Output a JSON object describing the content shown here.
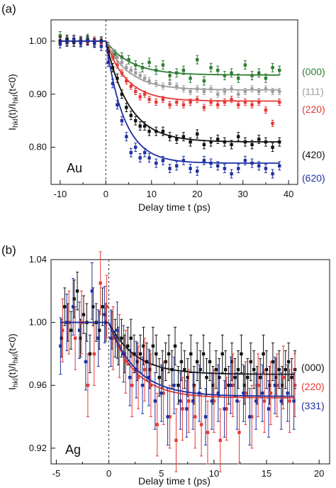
{
  "chart_data": [
    {
      "type": "scatter",
      "panel_label": "(a)",
      "annotation": "Au",
      "xlabel": "Delay time t (ps)",
      "ylabel": "I_hkl(t)/I_hkl(t<0)",
      "xlim": [
        -12,
        42
      ],
      "ylim": [
        0.73,
        1.04
      ],
      "xticks": [
        -10,
        0,
        10,
        20,
        30,
        40
      ],
      "yticks": [
        0.8,
        0.9,
        1.0
      ],
      "ytick_labels": [
        "0.80",
        "0.90",
        "1.00"
      ],
      "grid": false,
      "dashed_vline_x": 0,
      "series": [
        {
          "name": "(000)",
          "color": "#2e7d32",
          "amp": 0.064,
          "tau": 5.5,
          "x": [
            -10,
            -8.5,
            -7,
            -5.5,
            -4,
            -2.5,
            -1,
            0.5,
            2,
            3.5,
            5,
            6.5,
            8,
            9.5,
            11,
            12.5,
            14,
            15.5,
            17,
            18.5,
            20,
            21.5,
            23,
            24.5,
            26,
            27.5,
            29,
            30.5,
            32,
            33.5,
            35,
            36.5,
            38
          ],
          "y": [
            1.01,
            1.0,
            1.003,
            0.998,
            1.005,
            1.0,
            0.997,
            0.99,
            0.975,
            0.97,
            0.965,
            0.955,
            0.95,
            0.96,
            0.945,
            0.955,
            0.935,
            0.94,
            0.945,
            0.93,
            0.965,
            0.925,
            0.95,
            0.945,
            0.935,
            0.94,
            0.93,
            0.955,
            0.935,
            0.94,
            0.93,
            0.95,
            0.945
          ],
          "err": 0.008
        },
        {
          "name": "(111)",
          "color": "#9e9e9e",
          "amp": 0.092,
          "tau": 5.0,
          "x": [
            -10,
            -8.5,
            -7,
            -5.5,
            -4,
            -2.5,
            -1,
            0.5,
            1.5,
            2.5,
            3.5,
            4.5,
            5.5,
            6.5,
            7.5,
            8.5,
            9.5,
            11,
            12.5,
            14,
            15.5,
            17,
            18.5,
            20,
            21.5,
            23,
            24.5,
            26,
            27.5,
            29,
            30.5,
            32,
            33.5,
            35,
            36.5,
            38
          ],
          "y": [
            1.0,
            1.005,
            0.998,
            1.003,
            1.0,
            0.997,
            1.002,
            0.99,
            0.98,
            0.97,
            0.96,
            0.95,
            0.945,
            0.94,
            0.935,
            0.93,
            0.925,
            0.92,
            0.915,
            0.92,
            0.915,
            0.91,
            0.905,
            0.91,
            0.905,
            0.91,
            0.9,
            0.905,
            0.91,
            0.9,
            0.905,
            0.91,
            0.905,
            0.91,
            0.905,
            0.905
          ],
          "err": 0.006
        },
        {
          "name": "(220)",
          "color": "#e53935",
          "amp": 0.113,
          "tau": 4.5,
          "x": [
            -10,
            -8.5,
            -7,
            -5.5,
            -4,
            -2.5,
            -1,
            0.5,
            1.5,
            2.5,
            3.5,
            4.5,
            5.5,
            6.5,
            7.5,
            8.5,
            9.5,
            11,
            12.5,
            14,
            15.5,
            17,
            18.5,
            20,
            21.5,
            23,
            24.5,
            26,
            27.5,
            29,
            30.5,
            32,
            33.5,
            35,
            36.5,
            38
          ],
          "y": [
            1.0,
            0.997,
            1.003,
            1.0,
            0.998,
            1.002,
            0.997,
            0.985,
            0.97,
            0.955,
            0.94,
            0.925,
            0.915,
            0.905,
            0.895,
            0.9,
            0.89,
            0.885,
            0.89,
            0.88,
            0.885,
            0.88,
            0.885,
            0.89,
            0.875,
            0.885,
            0.88,
            0.885,
            0.89,
            0.88,
            0.885,
            0.88,
            0.885,
            0.87,
            0.845,
            0.885
          ],
          "err": 0.006
        },
        {
          "name": "(420)",
          "color": "#111111",
          "amp": 0.19,
          "tau": 5.0,
          "x": [
            -10,
            -8.5,
            -7,
            -5.5,
            -4,
            -2.5,
            -1,
            0.5,
            1.5,
            2.5,
            3.5,
            4.5,
            5.5,
            6.5,
            7.5,
            8.5,
            9.5,
            11,
            12.5,
            14,
            15.5,
            17,
            18.5,
            20,
            21.5,
            23,
            24.5,
            26,
            27.5,
            29,
            30.5,
            32,
            33.5,
            35,
            36.5,
            38
          ],
          "y": [
            1.0,
            1.003,
            0.998,
            1.0,
            1.002,
            0.997,
            1.0,
            0.98,
            0.95,
            0.93,
            0.9,
            0.875,
            0.86,
            0.85,
            0.84,
            0.84,
            0.83,
            0.83,
            0.83,
            0.82,
            0.815,
            0.82,
            0.81,
            0.825,
            0.805,
            0.81,
            0.815,
            0.81,
            0.805,
            0.82,
            0.81,
            0.805,
            0.815,
            0.81,
            0.8,
            0.81
          ],
          "err": 0.008
        },
        {
          "name": "(620)",
          "color": "#1e30a0",
          "amp": 0.23,
          "tau": 4.0,
          "x": [
            -10,
            -8.5,
            -7,
            -5.5,
            -4,
            -2.5,
            -1,
            0.5,
            1.5,
            2.5,
            3.5,
            4.5,
            5.5,
            6.5,
            7.5,
            8.5,
            9.5,
            11,
            12.5,
            14,
            15.5,
            17,
            18.5,
            20,
            21.5,
            23,
            24.5,
            26,
            27.5,
            29,
            30.5,
            32,
            33.5,
            35,
            36.5,
            38
          ],
          "y": [
            0.995,
            0.998,
            1.003,
            0.997,
            1.0,
            0.996,
            0.99,
            0.96,
            0.92,
            0.88,
            0.85,
            0.82,
            0.79,
            0.8,
            0.78,
            0.79,
            0.78,
            0.77,
            0.775,
            0.76,
            0.765,
            0.775,
            0.76,
            0.755,
            0.775,
            0.77,
            0.765,
            0.76,
            0.75,
            0.76,
            0.775,
            0.77,
            0.765,
            0.76,
            0.75,
            0.765
          ],
          "err": 0.008
        }
      ]
    },
    {
      "type": "scatter",
      "panel_label": "(b)",
      "annotation": "Ag",
      "xlabel": "Delay time t (ps)",
      "ylabel": "I_hkl(t)/I_hkl(t<0)",
      "xlim": [
        -5.5,
        21
      ],
      "ylim": [
        0.91,
        1.04
      ],
      "xticks": [
        -5,
        0,
        5,
        10,
        15,
        20
      ],
      "yticks": [
        0.92,
        0.96,
        1.0,
        1.04
      ],
      "ytick_labels": [
        "0.92",
        "0.96",
        "1.00",
        "1.04"
      ],
      "grid": false,
      "dashed_vline_x": 0,
      "series": [
        {
          "name": "(000)",
          "color": "#111111",
          "amp": 0.033,
          "tau": 2.5,
          "x": [
            -4.5,
            -4.2,
            -3.9,
            -3.6,
            -3.3,
            -3,
            -2.7,
            -2.4,
            -2.1,
            -1.8,
            -1.5,
            -1.2,
            -0.9,
            -0.6,
            -0.3,
            0.3,
            0.6,
            0.9,
            1.2,
            1.5,
            1.8,
            2.1,
            2.4,
            2.7,
            3,
            3.3,
            3.6,
            3.9,
            4.2,
            4.5,
            4.8,
            5.1,
            5.4,
            5.7,
            6,
            6.3,
            6.6,
            6.9,
            7.2,
            7.5,
            7.8,
            8.1,
            8.4,
            8.7,
            9,
            9.3,
            9.6,
            9.9,
            10.2,
            10.5,
            10.8,
            11.1,
            11.4,
            11.7,
            12,
            12.3,
            12.6,
            12.9,
            13.2,
            13.5,
            13.8,
            14.1,
            14.4,
            14.7,
            15,
            15.3,
            15.6,
            15.9,
            16.2,
            16.5,
            16.8,
            17.1,
            17.4,
            17.7
          ],
          "y": [
            0.99,
            1.01,
            1.0,
            0.995,
            1.015,
            1.02,
            0.99,
            1.005,
            1.0,
            0.98,
            1.01,
            1.0,
            0.995,
            1.01,
            1.0,
            0.995,
            0.99,
            0.985,
            0.99,
            0.98,
            0.985,
            0.99,
            0.98,
            0.975,
            0.98,
            0.985,
            0.975,
            0.97,
            0.985,
            0.98,
            0.965,
            0.97,
            0.975,
            0.98,
            0.97,
            0.985,
            0.96,
            0.975,
            0.97,
            0.965,
            0.98,
            0.96,
            0.975,
            0.97,
            0.98,
            0.965,
            0.975,
            0.96,
            0.97,
            0.965,
            0.98,
            0.97,
            0.96,
            0.975,
            0.965,
            0.97,
            0.98,
            0.96,
            0.965,
            0.975,
            0.97,
            0.96,
            0.965,
            0.98,
            0.97,
            0.96,
            0.975,
            0.965,
            0.97,
            0.96,
            0.97,
            0.975,
            0.965,
            0.97
          ],
          "err": 0.012
        },
        {
          "name": "(220)",
          "color": "#e53935",
          "amp": 0.048,
          "tau": 2.4,
          "x": [
            -4.4,
            -3.8,
            -3.2,
            -2.6,
            -2.0,
            -1.4,
            -0.8,
            -0.2,
            0.4,
            1.0,
            1.6,
            2.2,
            2.8,
            3.4,
            4.0,
            4.6,
            5.2,
            5.8,
            6.4,
            7.0,
            7.6,
            8.2,
            8.8,
            9.4,
            10.0,
            10.6,
            11.2,
            11.8,
            12.4,
            13.0,
            13.6,
            14.2,
            14.8,
            15.4,
            16.0,
            16.6,
            17.2,
            17.7
          ],
          "y": [
            0.995,
            1.0,
            0.99,
            1.0,
            0.96,
            0.98,
            1.025,
            1.01,
            0.99,
            0.985,
            0.975,
            0.96,
            0.965,
            0.97,
            0.96,
            0.935,
            0.955,
            0.94,
            0.925,
            0.945,
            0.95,
            0.94,
            0.935,
            0.93,
            0.95,
            0.925,
            0.945,
            0.96,
            0.93,
            0.955,
            0.94,
            0.96,
            0.95,
            0.955,
            0.96,
            0.965,
            0.95,
            0.96
          ],
          "err": 0.02
        },
        {
          "name": "(331)",
          "color": "#1e30a0",
          "amp": 0.047,
          "tau": 2.6,
          "x": [
            -4.6,
            -4.0,
            -3.4,
            -2.8,
            -2.2,
            -1.6,
            -1.0,
            -0.4,
            0.2,
            0.8,
            1.4,
            2.0,
            2.6,
            3.2,
            3.8,
            4.4,
            5.0,
            5.6,
            6.2,
            6.8,
            7.4,
            8.0,
            8.6,
            9.2,
            9.8,
            10.4,
            11.0,
            11.6,
            12.2,
            12.8,
            13.4,
            14.0,
            14.6,
            15.2,
            15.8,
            16.4,
            17.0,
            17.6
          ],
          "y": [
            0.985,
            1.0,
            1.01,
            0.995,
            0.975,
            1.02,
            0.99,
            1.005,
            0.99,
            0.995,
            0.98,
            0.965,
            0.97,
            0.96,
            0.965,
            0.95,
            0.955,
            0.94,
            0.96,
            0.95,
            0.945,
            0.95,
            0.955,
            0.94,
            0.95,
            0.955,
            0.945,
            0.96,
            0.95,
            0.955,
            0.94,
            0.95,
            0.955,
            0.945,
            0.96,
            0.95,
            0.955,
            0.95
          ],
          "err": 0.018
        }
      ]
    }
  ]
}
